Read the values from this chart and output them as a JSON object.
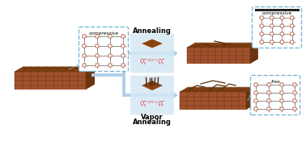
{
  "bg_color": "#ffffff",
  "film_color_top": "#8B4513",
  "film_color_front": "#A0522D",
  "film_color_side": "#6B3410",
  "film_color_top2": "#7B3F1E",
  "arrow_color": "#B0CEE8",
  "arrow_fill": "#C8DFF0",
  "label_compressive_left": "compressive",
  "label_compressive_right": "compressive",
  "label_free": "free",
  "label_annealing": "Annealing",
  "label_vapor1": "Vapor",
  "label_vapor2": "Annealing",
  "dashed_box_color": "#7AB8D4",
  "lattice_line_color": "#666666",
  "lattice_dot_orange": "#D4856A",
  "lattice_dot_white": "#FFFFFF",
  "heat_color": "#E84040",
  "temp_text": "170°C",
  "grid_line_color": "#5A2D0C",
  "process_box_color": "#D5E8F5",
  "substrate_color": "#D0D0D0",
  "vapor_spike_color": "#4A2810",
  "dark_bar_color": "#222222"
}
